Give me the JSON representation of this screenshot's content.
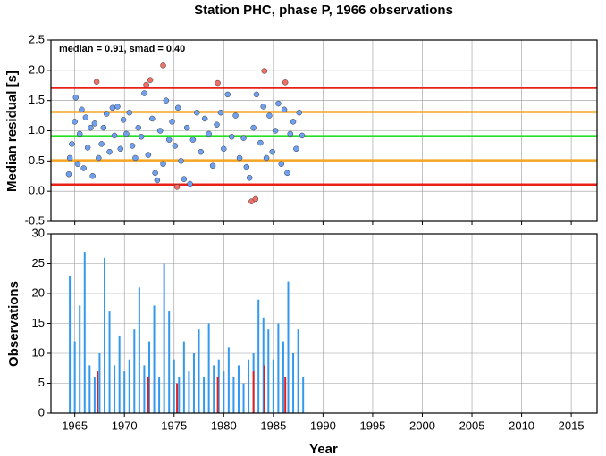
{
  "chart_data": [
    {
      "type": "scatter",
      "title": "Station PHC, phase P, 1966 observations",
      "ylabel": "Median residual [s]",
      "annotation": "median = 0.91, smad = 0.40",
      "xlim": [
        1962.6,
        2017.6
      ],
      "xticks": [
        1965,
        1970,
        1975,
        1980,
        1985,
        1990,
        1995,
        2000,
        2005,
        2010,
        2015
      ],
      "ylim": [
        -0.5,
        2.5
      ],
      "yticks": [
        2.5,
        {
          "value": 2,
          "label": "2.0"
        },
        1.5,
        {
          "value": 1,
          "label": "1.0"
        },
        0.5,
        {
          "value": 0,
          "label": "0.0"
        },
        -0.5
      ],
      "grid": true,
      "hlines": [
        {
          "value": 1.71,
          "color": "#e8201a"
        },
        {
          "value": 1.31,
          "color": "#f5a623"
        },
        {
          "value": 0.91,
          "color": "#22e022"
        },
        {
          "value": 0.51,
          "color": "#f5a623"
        },
        {
          "value": 0.11,
          "color": "#e8201a"
        }
      ],
      "series": [
        {
          "color": "#6fa0f0",
          "x": [
            1964.4,
            1964.5,
            1964.7,
            1965.0,
            1965.1,
            1965.3,
            1965.5,
            1965.7,
            1965.9,
            1966.1,
            1966.3,
            1966.6,
            1966.8,
            1967.0,
            1967.4,
            1967.7,
            1967.9,
            1968.2,
            1968.5,
            1968.8,
            1969.0,
            1969.3,
            1969.6,
            1969.9,
            1970.2,
            1970.5,
            1970.8,
            1971.1,
            1971.4,
            1971.7,
            1972.0,
            1972.4,
            1972.8,
            1973.1,
            1973.3,
            1973.6,
            1973.9,
            1974.2,
            1974.5,
            1974.8,
            1975.1,
            1975.4,
            1975.7,
            1976.0,
            1976.3,
            1976.6,
            1976.9,
            1977.3,
            1977.7,
            1978.1,
            1978.5,
            1978.9,
            1979.3,
            1979.7,
            1980.0,
            1980.4,
            1980.8,
            1981.2,
            1981.6,
            1982.0,
            1982.3,
            1982.6,
            1983.0,
            1983.3,
            1983.7,
            1984.0,
            1984.3,
            1984.6,
            1984.9,
            1985.2,
            1985.5,
            1985.8,
            1986.1,
            1986.4,
            1986.7,
            1987.0,
            1987.3,
            1987.6,
            1987.9
          ],
          "values": [
            0.28,
            0.55,
            0.78,
            1.15,
            1.55,
            0.45,
            0.95,
            1.35,
            0.38,
            1.22,
            0.72,
            1.05,
            0.25,
            1.12,
            0.55,
            0.78,
            1.05,
            1.28,
            0.65,
            1.38,
            0.92,
            1.4,
            0.7,
            1.18,
            0.95,
            1.3,
            0.75,
            0.55,
            1.05,
            0.9,
            1.62,
            0.6,
            1.2,
            0.3,
            0.18,
            1.0,
            0.45,
            1.5,
            0.85,
            1.15,
            0.75,
            1.38,
            0.5,
            0.2,
            1.05,
            0.12,
            0.85,
            1.3,
            0.65,
            1.2,
            0.95,
            0.42,
            1.1,
            1.3,
            0.7,
            1.6,
            0.9,
            1.25,
            0.55,
            0.88,
            0.4,
            0.22,
            1.05,
            1.6,
            0.8,
            1.4,
            0.55,
            1.25,
            0.65,
            1.0,
            1.45,
            0.45,
            1.35,
            0.3,
            0.95,
            1.15,
            0.7,
            1.3,
            0.92
          ]
        },
        {
          "color": "#f07068",
          "x": [
            1967.2,
            1972.2,
            1972.6,
            1973.9,
            1979.4,
            1984.1,
            1986.2,
            1975.3,
            1982.8,
            1983.2
          ],
          "values": [
            1.81,
            1.76,
            1.84,
            2.08,
            1.79,
            1.99,
            1.8,
            0.07,
            -0.17,
            -0.13
          ]
        }
      ]
    },
    {
      "type": "bar",
      "xlabel": "Year",
      "ylabel": "Observations",
      "xlim": [
        1962.6,
        2017.6
      ],
      "xticks": [
        1965,
        1970,
        1975,
        1980,
        1985,
        1990,
        1995,
        2000,
        2005,
        2010,
        2015
      ],
      "ylim": [
        0,
        30
      ],
      "yticks": [
        0,
        5,
        10,
        15,
        20,
        25,
        30
      ],
      "grid": true,
      "series": [
        {
          "color": "#3399ee",
          "x": [
            1964.5,
            1965,
            1965.5,
            1966,
            1966.5,
            1967,
            1967.5,
            1968,
            1968.5,
            1969,
            1969.5,
            1970,
            1970.5,
            1971,
            1971.5,
            1972,
            1972.5,
            1973,
            1973.5,
            1974,
            1974.5,
            1975,
            1975.5,
            1976,
            1976.5,
            1977,
            1977.5,
            1978,
            1978.5,
            1979,
            1979.5,
            1980,
            1980.5,
            1981,
            1981.5,
            1982,
            1982.5,
            1983,
            1983.5,
            1984,
            1984.5,
            1985,
            1985.5,
            1986,
            1986.5,
            1987,
            1987.5,
            1988
          ],
          "values": [
            23,
            12,
            18,
            27,
            8,
            6,
            10,
            26,
            17,
            8,
            13,
            7,
            9,
            14,
            21,
            8,
            12,
            18,
            6,
            25,
            17,
            9,
            6,
            12,
            7,
            10,
            14,
            6,
            15,
            8,
            9,
            7,
            11,
            6,
            8,
            5,
            9,
            10,
            19,
            16,
            14,
            9,
            15,
            12,
            22,
            10,
            14,
            6
          ]
        },
        {
          "color": "#e02020",
          "x": [
            1967.3,
            1972.4,
            1975.3,
            1979.4,
            1983.0,
            1984.1,
            1986.2
          ],
          "values": [
            7,
            6,
            5,
            6,
            7,
            8,
            6
          ]
        }
      ]
    }
  ]
}
